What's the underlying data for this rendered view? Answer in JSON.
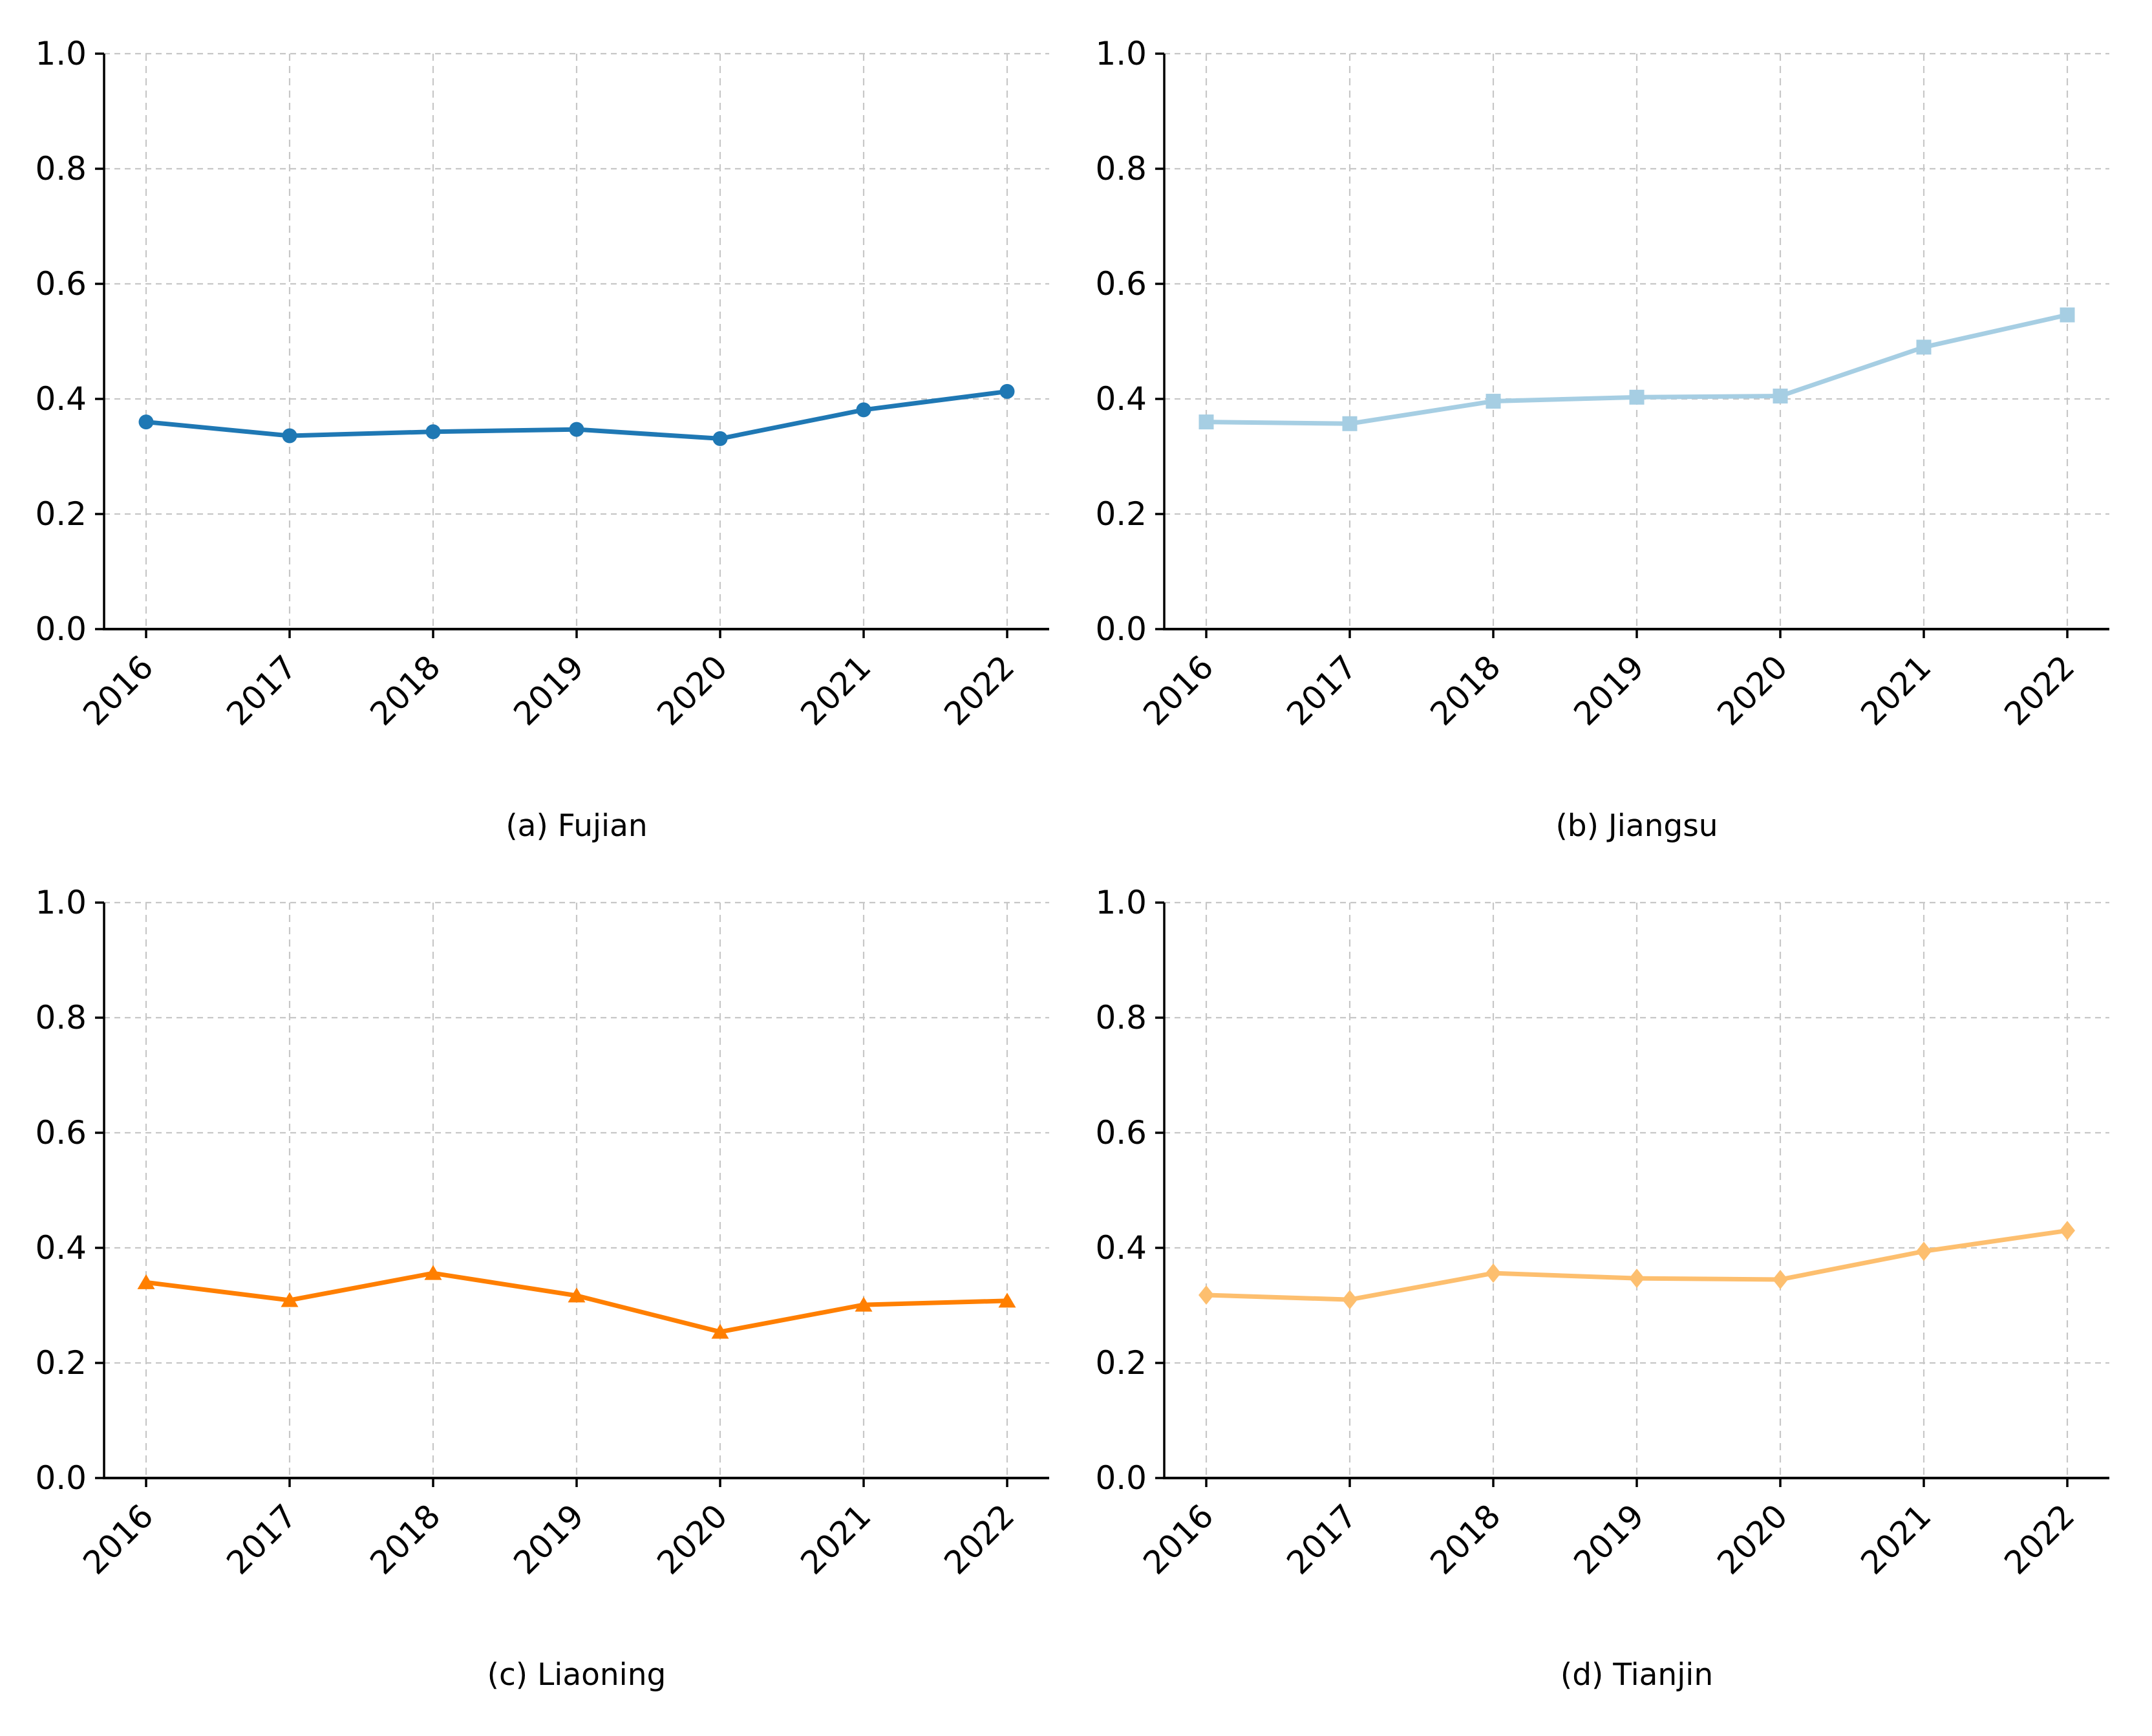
{
  "figure": {
    "background": "#ffffff",
    "grid_color": "#c7c7c7",
    "spine_color": "#000000",
    "tick_color": "#000000",
    "tick_label_color": "#000000"
  },
  "chart_data": [
    {
      "id": "fujian",
      "type": "line",
      "caption": "(a) Fujian",
      "marker": "circle",
      "color": "#1f78b4",
      "x": [
        "2016",
        "2017",
        "2018",
        "2019",
        "2020",
        "2021",
        "2022"
      ],
      "values": [
        0.36,
        0.336,
        0.343,
        0.347,
        0.331,
        0.381,
        0.413
      ],
      "ylim": [
        0.0,
        1.0
      ],
      "yticks": [
        "0.0",
        "0.2",
        "0.4",
        "0.6",
        "0.8",
        "1.0"
      ],
      "grid": "dashed",
      "legend": "none"
    },
    {
      "id": "jiangsu",
      "type": "line",
      "caption": "(b) Jiangsu",
      "marker": "square",
      "color": "#a6cee3",
      "x": [
        "2016",
        "2017",
        "2018",
        "2019",
        "2020",
        "2021",
        "2022"
      ],
      "values": [
        0.36,
        0.357,
        0.396,
        0.403,
        0.405,
        0.49,
        0.546
      ],
      "ylim": [
        0.0,
        1.0
      ],
      "yticks": [
        "0.0",
        "0.2",
        "0.4",
        "0.6",
        "0.8",
        "1.0"
      ],
      "grid": "dashed",
      "legend": "none"
    },
    {
      "id": "liaoning",
      "type": "line",
      "caption": "(c) Liaoning",
      "marker": "triangle-up",
      "color": "#ff7f00",
      "x": [
        "2016",
        "2017",
        "2018",
        "2019",
        "2020",
        "2021",
        "2022"
      ],
      "values": [
        0.34,
        0.309,
        0.356,
        0.317,
        0.254,
        0.301,
        0.308
      ],
      "ylim": [
        0.0,
        1.0
      ],
      "yticks": [
        "0.0",
        "0.2",
        "0.4",
        "0.6",
        "0.8",
        "1.0"
      ],
      "grid": "dashed",
      "legend": "none"
    },
    {
      "id": "tianjin",
      "type": "line",
      "caption": "(d) Tianjin",
      "marker": "diamond",
      "color": "#fdbf6f",
      "x": [
        "2016",
        "2017",
        "2018",
        "2019",
        "2020",
        "2021",
        "2022"
      ],
      "values": [
        0.318,
        0.31,
        0.356,
        0.347,
        0.345,
        0.394,
        0.43
      ],
      "ylim": [
        0.0,
        1.0
      ],
      "yticks": [
        "0.0",
        "0.2",
        "0.4",
        "0.6",
        "0.8",
        "1.0"
      ],
      "grid": "dashed",
      "legend": "none"
    }
  ]
}
